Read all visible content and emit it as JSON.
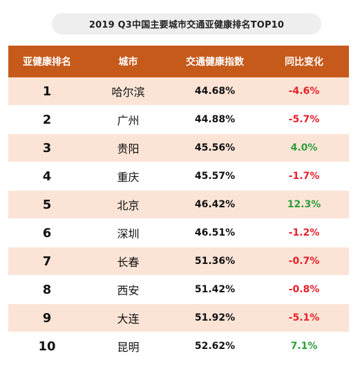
{
  "title": "2019 Q3中国主要城市交通亚健康排名TOP10",
  "headers": [
    "亚健康排名",
    "城市",
    "交通健康指数",
    "同比变化"
  ],
  "colors": {
    "header_bg": "#c65a1b",
    "row_alt_bg": "#fbe4d6",
    "negative": "#e8202b",
    "positive": "#2e9e3a"
  },
  "rows": [
    {
      "rank": "1",
      "city": "哈尔滨",
      "index": "44.68%",
      "change": "-4.6%",
      "trend": "neg"
    },
    {
      "rank": "2",
      "city": "广州",
      "index": "44.88%",
      "change": "-5.7%",
      "trend": "neg"
    },
    {
      "rank": "3",
      "city": "贵阳",
      "index": "45.56%",
      "change": "4.0%",
      "trend": "pos"
    },
    {
      "rank": "4",
      "city": "重庆",
      "index": "45.57%",
      "change": "-1.7%",
      "trend": "neg"
    },
    {
      "rank": "5",
      "city": "北京",
      "index": "46.42%",
      "change": "12.3%",
      "trend": "pos"
    },
    {
      "rank": "6",
      "city": "深圳",
      "index": "46.51%",
      "change": "-1.2%",
      "trend": "neg"
    },
    {
      "rank": "7",
      "city": "长春",
      "index": "51.36%",
      "change": "-0.7%",
      "trend": "neg"
    },
    {
      "rank": "8",
      "city": "西安",
      "index": "51.42%",
      "change": "-0.8%",
      "trend": "neg"
    },
    {
      "rank": "9",
      "city": "大连",
      "index": "51.92%",
      "change": "-5.1%",
      "trend": "neg"
    },
    {
      "rank": "10",
      "city": "昆明",
      "index": "52.62%",
      "change": "7.1%",
      "trend": "pos"
    }
  ]
}
